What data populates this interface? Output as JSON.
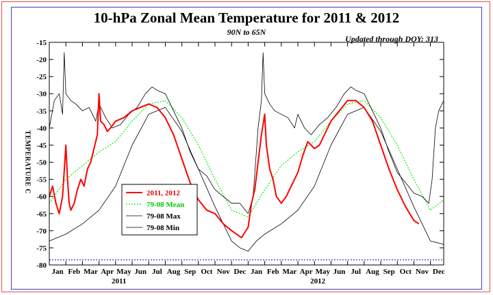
{
  "chart_data": {
    "type": "line",
    "title": "10-hPa Zonal Mean Temperature for 2011 & 2012",
    "subtitle": "90N to 65N",
    "updated": "Updated through DOY: 313",
    "ylabel": "TEMPERATURE C",
    "ylim": [
      -80,
      -15
    ],
    "yticks": [
      -15,
      -20,
      -25,
      -30,
      -35,
      -40,
      -45,
      -50,
      -55,
      -60,
      -65,
      -70,
      -75,
      -80
    ],
    "xlim": [
      0,
      23.8
    ],
    "month_labels": [
      "Jan",
      "Feb",
      "Mar",
      "Apr",
      "May",
      "Jun",
      "Jul",
      "Aug",
      "Sep",
      "Oct",
      "Nov",
      "Dec",
      "Jan",
      "Feb",
      "Mar",
      "Apr",
      "May",
      "Jun",
      "Jul",
      "Aug",
      "Sep",
      "Oct",
      "Nov",
      "Dec"
    ],
    "year_labels": [
      {
        "label": "2011",
        "at_month": 4.2
      },
      {
        "label": "2012",
        "at_month": 16.2
      }
    ],
    "reference_line": -78.5,
    "legend": [
      {
        "label": "2011, 2012",
        "color": "#ff0000"
      },
      {
        "label": "79-08 Mean",
        "color": "#00ee00"
      },
      {
        "label": "79-08 Max",
        "color": "#000000"
      },
      {
        "label": "79-08 Min",
        "color": "#000000"
      }
    ],
    "series": [
      {
        "name": "2011, 2012",
        "color": "#ff0000",
        "x": [
          0,
          0.2,
          0.4,
          0.6,
          0.8,
          1.0,
          1.1,
          1.2,
          1.3,
          1.5,
          1.7,
          1.9,
          2.1,
          2.3,
          2.5,
          2.7,
          2.9,
          3.0,
          3.1,
          3.3,
          3.5,
          3.7,
          4.0,
          4.5,
          5.0,
          5.5,
          6.0,
          6.5,
          7.0,
          7.5,
          8.0,
          8.5,
          9.0,
          9.5,
          10.0,
          10.5,
          11.0,
          11.3,
          11.6,
          12.0,
          12.2,
          12.4,
          12.6,
          12.8,
          13.0,
          13.1,
          13.3,
          13.5,
          13.7,
          14.0,
          14.3,
          14.6,
          15.0,
          15.3,
          15.6,
          16.0,
          16.3,
          16.6,
          17.0,
          17.5,
          18.0,
          18.5,
          19.0,
          19.5,
          20.0,
          20.5,
          21.0,
          21.5,
          22.0,
          22.3
        ],
        "values": [
          -60,
          -57,
          -62,
          -65,
          -60,
          -45,
          -55,
          -62,
          -64,
          -62,
          -58,
          -55,
          -57,
          -52,
          -50,
          -46,
          -42,
          -30,
          -38,
          -39,
          -41,
          -40,
          -38,
          -37,
          -35,
          -34,
          -33,
          -34,
          -37,
          -42,
          -49,
          -56,
          -61,
          -64,
          -65,
          -68,
          -70,
          -71,
          -72,
          -69,
          -62,
          -58,
          -50,
          -42,
          -36,
          -45,
          -52,
          -55,
          -60,
          -62,
          -60,
          -57,
          -53,
          -48,
          -44,
          -46,
          -45,
          -42,
          -38,
          -35,
          -32,
          -32,
          -34,
          -38,
          -45,
          -52,
          -58,
          -63,
          -67,
          -68
        ]
      },
      {
        "name": "79-08 Mean",
        "color": "#00ee00",
        "x": [
          0,
          1,
          2,
          3,
          4,
          5,
          6,
          7,
          8,
          9,
          10,
          11,
          12,
          13,
          14,
          15,
          16,
          17,
          18,
          19,
          20,
          21,
          22,
          23,
          23.8
        ],
        "values": [
          -62,
          -55,
          -51,
          -47,
          -44,
          -38,
          -33,
          -32,
          -37,
          -45,
          -55,
          -64,
          -66,
          -58,
          -51,
          -47,
          -44,
          -38,
          -33,
          -32,
          -37,
          -45,
          -55,
          -64,
          -61
        ]
      },
      {
        "name": "79-08 Max",
        "color": "#000000",
        "x": [
          0,
          0.3,
          0.6,
          0.8,
          0.9,
          1.0,
          1.3,
          1.6,
          2.0,
          2.4,
          2.8,
          3.0,
          3.4,
          3.8,
          4.3,
          4.8,
          5.3,
          5.8,
          6.2,
          6.5,
          7.0,
          7.5,
          8.0,
          8.5,
          9.0,
          9.5,
          10.0,
          10.5,
          11.0,
          11.5,
          12.0,
          12.3,
          12.6,
          12.8,
          12.9,
          13.0,
          13.3,
          13.6,
          14.0,
          14.4,
          14.8,
          15.0,
          15.4,
          15.8,
          16.3,
          16.8,
          17.3,
          17.8,
          18.2,
          18.5,
          19.0,
          19.5,
          20.0,
          20.5,
          21.0,
          21.5,
          22.0,
          22.5,
          22.9,
          23.1,
          23.3,
          23.5,
          23.8
        ],
        "values": [
          -40,
          -32,
          -30,
          -36,
          -18,
          -30,
          -32,
          -33,
          -35,
          -34,
          -38,
          -33,
          -37,
          -40,
          -39,
          -36,
          -34,
          -30,
          -28,
          -29,
          -30,
          -35,
          -40,
          -47,
          -52,
          -54,
          -58,
          -60,
          -62,
          -62,
          -65,
          -60,
          -40,
          -32,
          -18,
          -30,
          -33,
          -35,
          -36,
          -37,
          -40,
          -36,
          -40,
          -42,
          -39,
          -37,
          -34,
          -30,
          -28,
          -29,
          -30,
          -35,
          -40,
          -47,
          -53,
          -56,
          -59,
          -60,
          -62,
          -55,
          -40,
          -35,
          -32
        ]
      },
      {
        "name": "79-08 Min",
        "color": "#000000",
        "x": [
          0,
          1,
          2,
          3,
          4,
          5,
          6,
          7,
          8,
          9,
          10,
          11,
          11.5,
          12,
          12.5,
          13,
          14,
          15,
          16,
          17,
          18,
          19,
          20,
          21,
          22,
          23,
          23.8
        ],
        "values": [
          -73,
          -71,
          -68,
          -64,
          -57,
          -45,
          -36,
          -34,
          -41,
          -52,
          -63,
          -73,
          -75,
          -76,
          -73,
          -71,
          -68,
          -64,
          -57,
          -45,
          -36,
          -34,
          -41,
          -52,
          -63,
          -73,
          -74
        ]
      }
    ]
  }
}
